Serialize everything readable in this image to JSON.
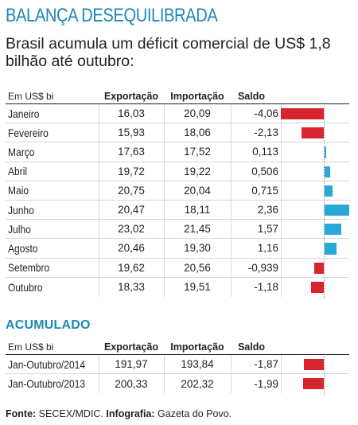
{
  "title": "BALANÇA DESEQUILIBRADA",
  "subtitle": "Brasil acumula um déficit comercial de US$ 1,8 bilhão até outubro:",
  "section_title": "ACUMULADO",
  "colors": {
    "title": "#1e87b6",
    "negative": "#d7242f",
    "positive": "#2aa9d6"
  },
  "source": {
    "label": "Fonte:",
    "text": "SECEX/MDIC.",
    "credit_label": "Infografia:",
    "credit": "Gazeta do Povo."
  },
  "chart_data": [
    {
      "type": "table",
      "columns": [
        "Em US$ bi",
        "Exportação",
        "Importação",
        "Saldo"
      ],
      "rows": [
        {
          "label": "Janeiro",
          "exp": "16,03",
          "imp": "20,09",
          "saldo": "-4,06",
          "value": -4.06
        },
        {
          "label": "Fevereiro",
          "exp": "15,93",
          "imp": "18,06",
          "saldo": "-2,13",
          "value": -2.13
        },
        {
          "label": "Março",
          "exp": "17,63",
          "imp": "17,52",
          "saldo": "0,113",
          "value": 0.113
        },
        {
          "label": "Abril",
          "exp": "19,72",
          "imp": "19,22",
          "saldo": "0,506",
          "value": 0.506
        },
        {
          "label": "Maio",
          "exp": "20,75",
          "imp": "20,04",
          "saldo": "0,715",
          "value": 0.715
        },
        {
          "label": "Junho",
          "exp": "20,47",
          "imp": "18,11",
          "saldo": "2,36",
          "value": 2.36
        },
        {
          "label": "Julho",
          "exp": "23,02",
          "imp": "21,45",
          "saldo": "1,57",
          "value": 1.57
        },
        {
          "label": "Agosto",
          "exp": "20,46",
          "imp": "19,30",
          "saldo": "1,16",
          "value": 1.16
        },
        {
          "label": "Setembro",
          "exp": "19,62",
          "imp": "20,56",
          "saldo": "-0,939",
          "value": -0.939
        },
        {
          "label": "Outubro",
          "exp": "18,33",
          "imp": "19,51",
          "saldo": "-1,18",
          "value": -1.18
        }
      ]
    },
    {
      "type": "table",
      "columns": [
        "Em US$ bi",
        "Exportação",
        "Importação",
        "Saldo"
      ],
      "rows": [
        {
          "label": "Jan-Outubro/2014",
          "exp": "191,97",
          "imp": "193,84",
          "saldo": "-1,87",
          "value": -1.87
        },
        {
          "label": "Jan-Outubro/2013",
          "exp": "200,33",
          "imp": "202,32",
          "saldo": "-1,99",
          "value": -1.99
        }
      ]
    }
  ]
}
